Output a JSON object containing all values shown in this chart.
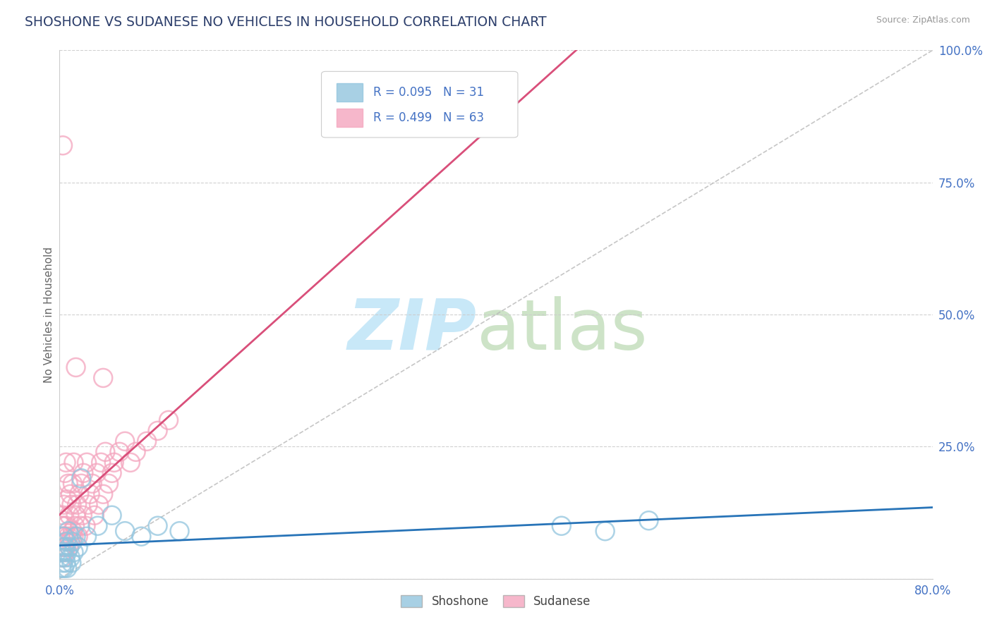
{
  "title": "SHOSHONE VS SUDANESE NO VEHICLES IN HOUSEHOLD CORRELATION CHART",
  "source": "Source: ZipAtlas.com",
  "ylabel": "No Vehicles in Household",
  "xlim": [
    0.0,
    0.8
  ],
  "ylim": [
    0.0,
    1.0
  ],
  "shoshone_R": 0.095,
  "shoshone_N": 31,
  "sudanese_R": 0.499,
  "sudanese_N": 63,
  "shoshone_color": "#92c5de",
  "sudanese_color": "#f4a5be",
  "shoshone_line_color": "#2874b8",
  "sudanese_line_color": "#d94f7a",
  "background_color": "#ffffff",
  "grid_color": "#cccccc",
  "title_color": "#2c3e6b",
  "tick_color": "#4472c4",
  "watermark_zip_color": "#c8e8f8",
  "watermark_atlas_color": "#b8d8b0",
  "sho_x": [
    0.001,
    0.002,
    0.003,
    0.003,
    0.004,
    0.004,
    0.005,
    0.005,
    0.006,
    0.006,
    0.007,
    0.007,
    0.008,
    0.009,
    0.01,
    0.011,
    0.012,
    0.013,
    0.015,
    0.017,
    0.02,
    0.025,
    0.035,
    0.048,
    0.06,
    0.075,
    0.09,
    0.11,
    0.46,
    0.5,
    0.54
  ],
  "sho_y": [
    0.04,
    0.02,
    0.05,
    0.03,
    0.08,
    0.02,
    0.06,
    0.04,
    0.03,
    0.07,
    0.05,
    0.02,
    0.09,
    0.06,
    0.04,
    0.03,
    0.07,
    0.05,
    0.08,
    0.06,
    0.19,
    0.08,
    0.1,
    0.12,
    0.09,
    0.08,
    0.1,
    0.09,
    0.1,
    0.09,
    0.11
  ],
  "sud_x": [
    0.001,
    0.001,
    0.002,
    0.002,
    0.003,
    0.003,
    0.003,
    0.004,
    0.004,
    0.004,
    0.005,
    0.005,
    0.005,
    0.006,
    0.006,
    0.006,
    0.007,
    0.007,
    0.008,
    0.008,
    0.009,
    0.009,
    0.01,
    0.01,
    0.011,
    0.011,
    0.012,
    0.012,
    0.013,
    0.013,
    0.014,
    0.015,
    0.016,
    0.017,
    0.018,
    0.019,
    0.02,
    0.021,
    0.022,
    0.024,
    0.025,
    0.026,
    0.028,
    0.03,
    0.032,
    0.034,
    0.036,
    0.038,
    0.04,
    0.042,
    0.045,
    0.048,
    0.05,
    0.055,
    0.06,
    0.065,
    0.07,
    0.08,
    0.09,
    0.1,
    0.003,
    0.015,
    0.04
  ],
  "sud_y": [
    0.05,
    0.08,
    0.06,
    0.1,
    0.04,
    0.08,
    0.12,
    0.06,
    0.1,
    0.14,
    0.05,
    0.08,
    0.2,
    0.06,
    0.1,
    0.22,
    0.07,
    0.15,
    0.08,
    0.18,
    0.06,
    0.12,
    0.07,
    0.16,
    0.08,
    0.14,
    0.09,
    0.18,
    0.08,
    0.22,
    0.1,
    0.12,
    0.14,
    0.08,
    0.16,
    0.1,
    0.18,
    0.12,
    0.2,
    0.1,
    0.22,
    0.14,
    0.16,
    0.18,
    0.12,
    0.2,
    0.14,
    0.22,
    0.16,
    0.24,
    0.18,
    0.2,
    0.22,
    0.24,
    0.26,
    0.22,
    0.24,
    0.26,
    0.28,
    0.3,
    0.82,
    0.4,
    0.38
  ]
}
